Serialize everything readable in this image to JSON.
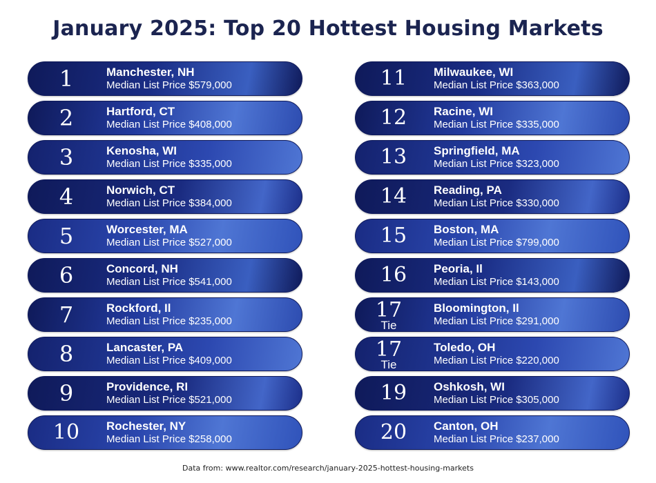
{
  "title": "January 2025: Top 20 Hottest Housing Markets",
  "footer": "Data from: www.realtor.com/research/january-2025-hottest-housing-markets",
  "colors": {
    "title": "#1b2450",
    "card_dark": "#0f1a5a",
    "card_light": "#4f76d4",
    "card_text": "#ffffff"
  },
  "markets": [
    {
      "rank": "1",
      "tie": "",
      "city": "Manchester, NH",
      "price": "Median List Price $579,000"
    },
    {
      "rank": "2",
      "tie": "",
      "city": "Hartford, CT",
      "price": "Median List Price $408,000"
    },
    {
      "rank": "3",
      "tie": "",
      "city": "Kenosha, WI",
      "price": "Median List Price $335,000"
    },
    {
      "rank": "4",
      "tie": "",
      "city": "Norwich, CT",
      "price": "Median List Price $384,000"
    },
    {
      "rank": "5",
      "tie": "",
      "city": "Worcester, MA",
      "price": "Median List Price $527,000"
    },
    {
      "rank": "6",
      "tie": "",
      "city": "Concord, NH",
      "price": "Median List Price $541,000"
    },
    {
      "rank": "7",
      "tie": "",
      "city": "Rockford, Il",
      "price": "Median List Price $235,000"
    },
    {
      "rank": "8",
      "tie": "",
      "city": "Lancaster, PA",
      "price": "Median List Price $409,000"
    },
    {
      "rank": "9",
      "tie": "",
      "city": "Providence, RI",
      "price": "Median List Price $521,000"
    },
    {
      "rank": "10",
      "tie": "",
      "city": "Rochester, NY",
      "price": "Median List Price $258,000"
    },
    {
      "rank": "11",
      "tie": "",
      "city": "Milwaukee, WI",
      "price": "Median List Price $363,000"
    },
    {
      "rank": "12",
      "tie": "",
      "city": "Racine, WI",
      "price": "Median List Price $335,000"
    },
    {
      "rank": "13",
      "tie": "",
      "city": "Springfield, MA",
      "price": "Median List Price $323,000"
    },
    {
      "rank": "14",
      "tie": "",
      "city": "Reading, PA",
      "price": "Median List Price $330,000"
    },
    {
      "rank": "15",
      "tie": "",
      "city": "Boston, MA",
      "price": "Median List Price $799,000"
    },
    {
      "rank": "16",
      "tie": "",
      "city": "Peoria, Il",
      "price": "Median List Price $143,000"
    },
    {
      "rank": "17",
      "tie": "Tie",
      "city": "Bloomington, Il",
      "price": "Median List Price $291,000"
    },
    {
      "rank": "17",
      "tie": "Tie",
      "city": "Toledo, OH",
      "price": "Median List Price $220,000"
    },
    {
      "rank": "19",
      "tie": "",
      "city": "Oshkosh, WI",
      "price": "Median List Price $305,000"
    },
    {
      "rank": "20",
      "tie": "",
      "city": "Canton, OH",
      "price": "Median List Price $237,000"
    }
  ]
}
